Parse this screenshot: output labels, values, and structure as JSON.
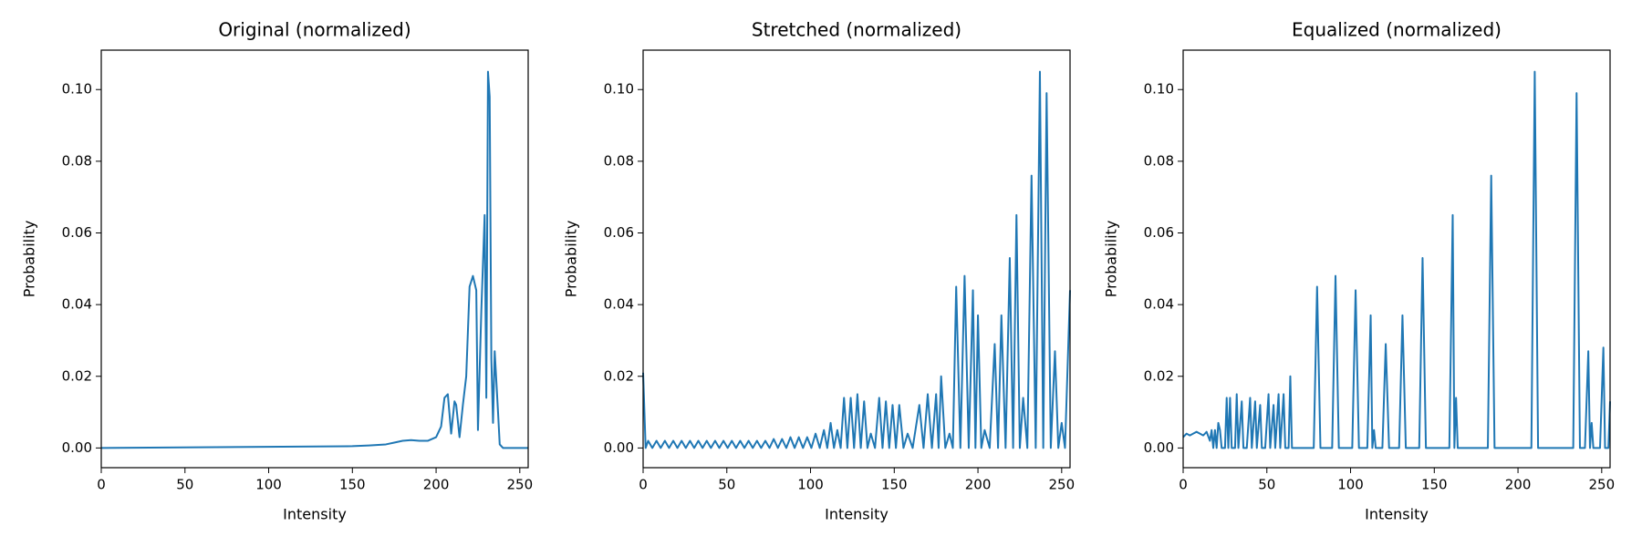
{
  "chart_data": [
    {
      "type": "line",
      "title": "Original (normalized)",
      "xlabel": "Intensity",
      "ylabel": "Probability",
      "color": "#1f77b4",
      "xlim": [
        0,
        255
      ],
      "ylim": [
        -0.0055,
        0.111
      ],
      "xticks": [
        0,
        50,
        100,
        150,
        200,
        250
      ],
      "yticks": [
        {
          "value": 0,
          "label": "0.00"
        },
        {
          "value": 0.02,
          "label": "0.02"
        },
        {
          "value": 0.04,
          "label": "0.04"
        },
        {
          "value": 0.06,
          "label": "0.06"
        },
        {
          "value": 0.08,
          "label": "0.08"
        },
        {
          "value": 0.1,
          "label": "0.10"
        }
      ],
      "x": [
        0,
        150,
        160,
        170,
        175,
        180,
        185,
        190,
        195,
        200,
        203,
        205,
        207,
        209,
        211,
        212,
        214,
        216,
        218,
        220,
        222,
        224,
        225,
        227,
        229,
        230,
        231,
        232,
        233,
        234,
        235,
        237,
        238,
        240,
        255
      ],
      "values": [
        0,
        0.0005,
        0.0007,
        0.001,
        0.0015,
        0.002,
        0.0022,
        0.002,
        0.002,
        0.003,
        0.006,
        0.014,
        0.015,
        0.004,
        0.013,
        0.012,
        0.003,
        0.012,
        0.02,
        0.045,
        0.048,
        0.044,
        0.005,
        0.038,
        0.065,
        0.014,
        0.105,
        0.098,
        0.025,
        0.007,
        0.027,
        0.01,
        0.001,
        0,
        0
      ]
    },
    {
      "type": "line",
      "title": "Stretched (normalized)",
      "xlabel": "Intensity",
      "ylabel": "Probability",
      "color": "#1f77b4",
      "xlim": [
        0,
        255
      ],
      "ylim": [
        -0.0055,
        0.111
      ],
      "xticks": [
        0,
        50,
        100,
        150,
        200,
        250
      ],
      "yticks": [
        {
          "value": 0,
          "label": "0.00"
        },
        {
          "value": 0.02,
          "label": "0.02"
        },
        {
          "value": 0.04,
          "label": "0.04"
        },
        {
          "value": 0.06,
          "label": "0.06"
        },
        {
          "value": 0.08,
          "label": "0.08"
        },
        {
          "value": 0.1,
          "label": "0.10"
        }
      ],
      "x": [
        0,
        1.5,
        3,
        5.5,
        8,
        10.5,
        13,
        15.5,
        18,
        20.5,
        23,
        25.5,
        28,
        30.5,
        33,
        35.5,
        38,
        40.5,
        43,
        45.5,
        48,
        50.5,
        53,
        55.5,
        58,
        60.5,
        63,
        65.5,
        68,
        70.5,
        73,
        75.5,
        78,
        80.5,
        83,
        85.5,
        88,
        90.5,
        93,
        95.5,
        98,
        100.5,
        103,
        105.5,
        108,
        110,
        112,
        114,
        116,
        118,
        120,
        122,
        124,
        126,
        128,
        130,
        132,
        134,
        136,
        138.5,
        141,
        143,
        145,
        147,
        149,
        151,
        153,
        155.5,
        158,
        161,
        165,
        167.5,
        170,
        172.5,
        175,
        176.5,
        178,
        180.5,
        183,
        185,
        187,
        189.5,
        192,
        194.5,
        197,
        198.5,
        200,
        202,
        204,
        207,
        210,
        212,
        214,
        216.5,
        219,
        221,
        223,
        225,
        227,
        229.5,
        232,
        234.5,
        237,
        239,
        241,
        243.5,
        246,
        248,
        250,
        252,
        255
      ],
      "values": [
        0.021,
        0,
        0.002,
        0,
        0.002,
        0,
        0.002,
        0,
        0.002,
        0,
        0.002,
        0,
        0.002,
        0,
        0.002,
        0,
        0.002,
        0,
        0.002,
        0,
        0.002,
        0,
        0.002,
        0,
        0.002,
        0,
        0.002,
        0,
        0.002,
        0,
        0.002,
        0,
        0.0025,
        0,
        0.0025,
        0,
        0.003,
        0,
        0.003,
        0,
        0.003,
        0,
        0.004,
        0,
        0.005,
        0,
        0.007,
        0,
        0.005,
        0,
        0.014,
        0,
        0.014,
        0,
        0.015,
        0,
        0.013,
        0,
        0.004,
        0,
        0.014,
        0,
        0.013,
        0,
        0.012,
        0,
        0.012,
        0,
        0.004,
        0,
        0.012,
        0,
        0.015,
        0,
        0.015,
        0,
        0.02,
        0,
        0.004,
        0,
        0.045,
        0,
        0.048,
        0,
        0.044,
        0,
        0.037,
        0,
        0.005,
        0,
        0.029,
        0,
        0.037,
        0,
        0.053,
        0,
        0.065,
        0,
        0.014,
        0,
        0.076,
        0,
        0.105,
        0,
        0.099,
        0,
        0.027,
        0,
        0.007,
        0,
        0.044
      ]
    },
    {
      "type": "line",
      "title": "Equalized (normalized)",
      "xlabel": "Intensity",
      "ylabel": "Probability",
      "color": "#1f77b4",
      "xlim": [
        0,
        255
      ],
      "ylim": [
        -0.0055,
        0.111
      ],
      "xticks": [
        0,
        50,
        100,
        150,
        200,
        250
      ],
      "yticks": [
        {
          "value": 0,
          "label": "0.00"
        },
        {
          "value": 0.02,
          "label": "0.02"
        },
        {
          "value": 0.04,
          "label": "0.04"
        },
        {
          "value": 0.06,
          "label": "0.06"
        },
        {
          "value": 0.08,
          "label": "0.08"
        },
        {
          "value": 0.1,
          "label": "0.10"
        }
      ],
      "x": [
        0,
        2,
        4,
        6,
        8,
        10,
        12,
        14,
        16,
        17,
        18,
        19,
        20,
        21,
        22,
        23,
        25,
        26,
        27,
        28,
        29,
        31,
        32,
        33,
        35,
        36,
        38,
        40,
        41,
        43,
        44,
        46,
        47,
        49,
        51,
        52,
        54,
        55,
        57,
        58,
        60,
        61,
        63,
        64,
        65,
        78,
        80,
        82,
        89,
        91,
        93,
        101,
        103,
        105,
        110,
        112,
        113,
        114,
        115,
        119,
        121,
        123,
        129,
        131,
        133,
        141,
        143,
        145,
        159,
        161,
        162,
        163,
        164,
        182,
        184,
        186,
        208,
        210,
        212,
        233,
        235,
        237,
        240,
        242,
        243,
        244,
        245,
        249,
        251,
        252,
        254,
        255
      ],
      "values": [
        0.003,
        0.004,
        0.0035,
        0.004,
        0.0045,
        0.004,
        0.0035,
        0.0045,
        0.002,
        0.005,
        0,
        0.005,
        0,
        0.007,
        0.005,
        0,
        0,
        0.014,
        0,
        0.014,
        0,
        0,
        0.015,
        0,
        0.013,
        0,
        0,
        0.014,
        0,
        0.013,
        0,
        0.012,
        0,
        0,
        0.015,
        0,
        0.012,
        0,
        0.015,
        0,
        0.015,
        0,
        0,
        0.02,
        0,
        0,
        0.045,
        0,
        0,
        0.048,
        0,
        0,
        0.044,
        0,
        0,
        0.037,
        0,
        0.005,
        0,
        0,
        0.029,
        0,
        0,
        0.037,
        0,
        0,
        0.053,
        0,
        0,
        0.065,
        0,
        0.014,
        0,
        0,
        0.076,
        0,
        0,
        0.105,
        0,
        0,
        0.099,
        0,
        0,
        0.027,
        0,
        0.007,
        0,
        0,
        0.028,
        0,
        0,
        0.013
      ]
    }
  ]
}
